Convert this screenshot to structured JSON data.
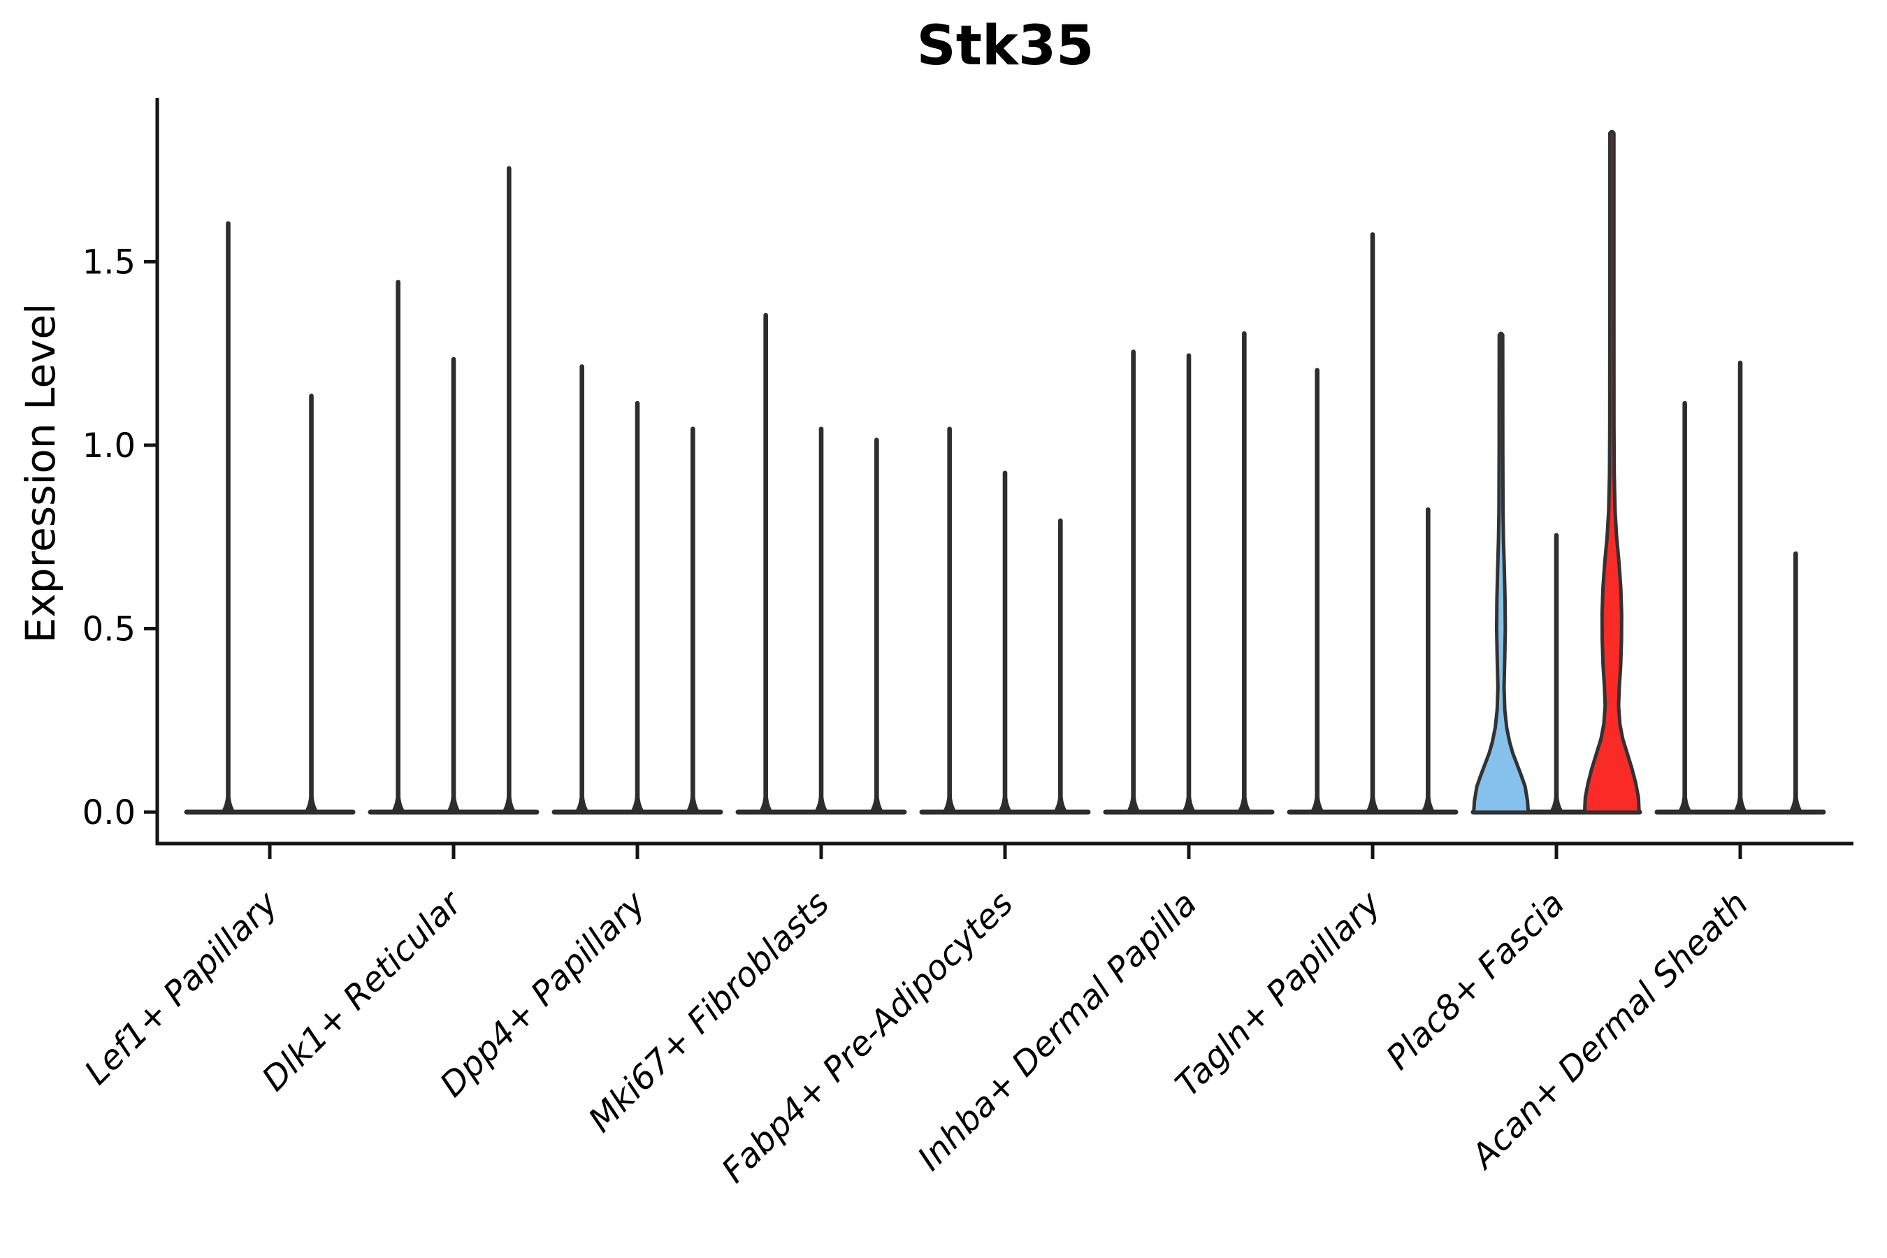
{
  "figure": {
    "title": "Stk35",
    "ylabel": "Expression Level"
  },
  "chart_data": {
    "type": "violin",
    "title": "Stk35",
    "xlabel": "",
    "ylabel": "Expression Level",
    "ylim": [
      -0.09,
      1.95
    ],
    "grid": false,
    "legend": null,
    "yticks": [
      0.0,
      0.5,
      1.0,
      1.5
    ],
    "ytick_labels": [
      "0.0",
      "0.5",
      "1.0",
      "1.5"
    ],
    "categories": [
      "Lef1+ Papillary",
      "Dlk1+ Reticular",
      "Dpp4+ Papillary",
      "Mki67+ Fibroblasts",
      "Fabp4+ Pre-Adipocytes",
      "Inhba+ Dermal Papilla",
      "Tagln+ Papillary",
      "Plac8+ Fascia",
      "Acan+ Dermal Sheath"
    ],
    "colors": {
      "spike": "#2d2d2d",
      "outline": "#323232",
      "axis": "#141414",
      "text": "#000000",
      "highlight_blue": "#85C1EA",
      "highlight_red": "#FA2B26"
    },
    "groups": [
      {
        "category": "Lef1+ Papillary",
        "violins": [
          {
            "kind": "spike",
            "max": 1.61
          },
          {
            "kind": "spike",
            "max": 1.14
          }
        ]
      },
      {
        "category": "Dlk1+ Reticular",
        "violins": [
          {
            "kind": "spike",
            "max": 1.45
          },
          {
            "kind": "spike",
            "max": 1.24
          },
          {
            "kind": "spike",
            "max": 1.76
          }
        ]
      },
      {
        "category": "Dpp4+ Papillary",
        "violins": [
          {
            "kind": "spike",
            "max": 1.22
          },
          {
            "kind": "spike",
            "max": 1.12
          },
          {
            "kind": "spike",
            "max": 1.05
          }
        ]
      },
      {
        "category": "Mki67+ Fibroblasts",
        "violins": [
          {
            "kind": "spike",
            "max": 1.36
          },
          {
            "kind": "spike",
            "max": 1.05
          },
          {
            "kind": "spike",
            "max": 1.02
          }
        ]
      },
      {
        "category": "Fabp4+ Pre-Adipocytes",
        "violins": [
          {
            "kind": "spike",
            "max": 1.05
          },
          {
            "kind": "spike",
            "max": 0.93
          },
          {
            "kind": "spike",
            "max": 0.8
          }
        ]
      },
      {
        "category": "Inhba+ Dermal Papilla",
        "violins": [
          {
            "kind": "spike",
            "max": 1.26
          },
          {
            "kind": "spike",
            "max": 1.25
          },
          {
            "kind": "spike",
            "max": 1.31
          }
        ]
      },
      {
        "category": "Tagln+ Papillary",
        "violins": [
          {
            "kind": "spike",
            "max": 1.21
          },
          {
            "kind": "spike",
            "max": 1.58
          },
          {
            "kind": "spike",
            "max": 0.83
          }
        ]
      },
      {
        "category": "Plac8+ Fascia",
        "violins": [
          {
            "kind": "violin",
            "max": 1.3,
            "fill": "#85C1EA",
            "profile": [
              [
                0.0,
                39
              ],
              [
                0.03,
                38
              ],
              [
                0.07,
                34.5
              ],
              [
                0.1,
                29
              ],
              [
                0.13,
                23
              ],
              [
                0.16,
                17
              ],
              [
                0.19,
                12.5
              ],
              [
                0.23,
                8.2
              ],
              [
                0.28,
                5.4
              ],
              [
                0.34,
                4.4
              ],
              [
                0.42,
                5.4
              ],
              [
                0.5,
                6.2
              ],
              [
                0.58,
                5.8
              ],
              [
                0.66,
                4.8
              ],
              [
                0.74,
                3.6
              ],
              [
                0.82,
                2.9
              ],
              [
                1.0,
                2.6
              ],
              [
                1.3,
                2.5
              ]
            ]
          },
          {
            "kind": "spike",
            "max": 0.76
          },
          {
            "kind": "violin",
            "max": 1.85,
            "fill": "#FA2B26",
            "profile": [
              [
                0.0,
                39
              ],
              [
                0.04,
                38
              ],
              [
                0.08,
                34
              ],
              [
                0.12,
                28.5
              ],
              [
                0.16,
                22
              ],
              [
                0.2,
                15.5
              ],
              [
                0.24,
                11.5
              ],
              [
                0.29,
                9.6
              ],
              [
                0.34,
                10.6
              ],
              [
                0.4,
                12.6
              ],
              [
                0.47,
                13.8
              ],
              [
                0.54,
                14.0
              ],
              [
                0.61,
                12.8
              ],
              [
                0.68,
                10.2
              ],
              [
                0.75,
                6.8
              ],
              [
                0.82,
                4.6
              ],
              [
                0.92,
                3.4
              ],
              [
                1.05,
                3.0
              ],
              [
                1.45,
                2.9
              ],
              [
                1.85,
                2.9
              ]
            ]
          }
        ]
      },
      {
        "category": "Acan+ Dermal Sheath",
        "violins": [
          {
            "kind": "spike",
            "max": 1.12
          },
          {
            "kind": "spike",
            "max": 1.23
          },
          {
            "kind": "spike",
            "max": 0.71
          }
        ]
      }
    ]
  }
}
